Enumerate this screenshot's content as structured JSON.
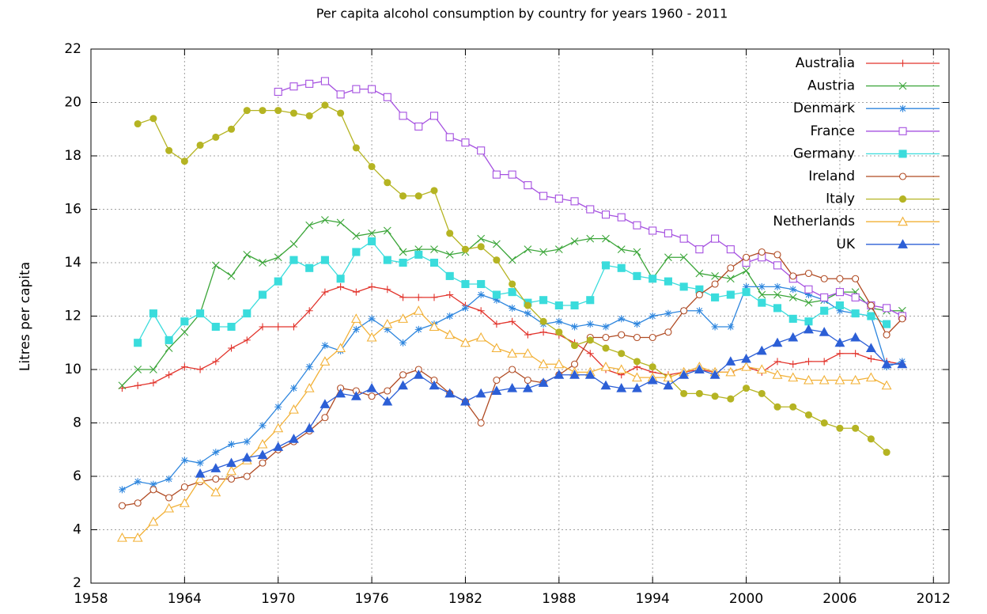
{
  "chart_data": {
    "type": "line",
    "title": "Per capita alcohol consumption by country for years 1960 - 2011",
    "y_label": "Litres per capita",
    "xlim": [
      1958,
      2013
    ],
    "xticks": [
      1958,
      1964,
      1970,
      1976,
      1982,
      1988,
      1994,
      2000,
      2006,
      2012
    ],
    "ylim": [
      2,
      22
    ],
    "yticks": [
      2,
      4,
      6,
      8,
      10,
      12,
      14,
      16,
      18,
      20,
      22
    ],
    "grid": true,
    "legend": "top-right",
    "x": [
      1960,
      1961,
      1962,
      1963,
      1964,
      1965,
      1966,
      1967,
      1968,
      1969,
      1970,
      1971,
      1972,
      1973,
      1974,
      1975,
      1976,
      1977,
      1978,
      1979,
      1980,
      1981,
      1982,
      1983,
      1984,
      1985,
      1986,
      1987,
      1988,
      1989,
      1990,
      1991,
      1992,
      1993,
      1994,
      1995,
      1996,
      1997,
      1998,
      1999,
      2000,
      2001,
      2002,
      2003,
      2004,
      2005,
      2006,
      2007,
      2008,
      2009,
      2010
    ],
    "series": [
      {
        "name": "Australia",
        "color": "#e2332b",
        "marker": "plus",
        "values": [
          9.3,
          9.4,
          9.5,
          9.8,
          10.1,
          10.0,
          10.3,
          10.8,
          11.1,
          11.6,
          11.6,
          11.6,
          12.2,
          12.9,
          13.1,
          12.9,
          13.1,
          13.0,
          12.7,
          12.7,
          12.7,
          12.8,
          12.4,
          12.2,
          11.7,
          11.8,
          11.3,
          11.4,
          11.3,
          11.0,
          10.6,
          10.0,
          9.8,
          10.1,
          9.9,
          9.8,
          9.9,
          10.0,
          9.9,
          9.9,
          10.1,
          9.9,
          10.3,
          10.2,
          10.3,
          10.3,
          10.6,
          10.6,
          10.4,
          10.3,
          10.2
        ]
      },
      {
        "name": "Austria",
        "color": "#3aa538",
        "marker": "cross",
        "values": [
          9.4,
          10.0,
          10.0,
          10.8,
          11.4,
          12.1,
          13.9,
          13.5,
          14.3,
          14.0,
          14.2,
          14.7,
          15.4,
          15.6,
          15.5,
          15.0,
          15.1,
          15.2,
          14.4,
          14.5,
          14.5,
          14.3,
          14.4,
          14.9,
          14.7,
          14.1,
          14.5,
          14.4,
          14.5,
          14.8,
          14.9,
          14.9,
          14.5,
          14.4,
          13.4,
          14.2,
          14.2,
          13.6,
          13.5,
          13.4,
          13.7,
          12.8,
          12.8,
          12.7,
          12.5,
          12.6,
          12.9,
          12.9,
          12.3,
          12.2,
          12.2
        ]
      },
      {
        "name": "Denmark",
        "color": "#2e86de",
        "marker": "star",
        "values": [
          5.5,
          5.8,
          5.7,
          5.9,
          6.6,
          6.5,
          6.9,
          7.2,
          7.3,
          7.9,
          8.6,
          9.3,
          10.1,
          10.9,
          10.7,
          11.5,
          11.9,
          11.5,
          11.0,
          11.5,
          11.7,
          12.0,
          12.3,
          12.8,
          12.6,
          12.3,
          12.1,
          11.7,
          11.8,
          11.6,
          11.7,
          11.6,
          11.9,
          11.7,
          12.0,
          12.1,
          12.2,
          12.2,
          11.6,
          11.6,
          13.1,
          13.1,
          13.1,
          13.0,
          12.8,
          12.6,
          12.2,
          12.1,
          12.0,
          10.1,
          10.3
        ]
      },
      {
        "name": "France",
        "color": "#a550e0",
        "marker": "open-square",
        "values": [
          null,
          null,
          null,
          null,
          null,
          null,
          null,
          null,
          null,
          null,
          20.4,
          20.6,
          20.7,
          20.8,
          20.3,
          20.5,
          20.5,
          20.2,
          19.5,
          19.1,
          19.5,
          18.7,
          18.5,
          18.2,
          17.3,
          17.3,
          16.9,
          16.5,
          16.4,
          16.3,
          16.0,
          15.8,
          15.7,
          15.4,
          15.2,
          15.1,
          14.9,
          14.5,
          14.9,
          14.5,
          14.0,
          14.2,
          13.9,
          13.4,
          13.0,
          12.7,
          12.9,
          12.7,
          12.4,
          12.3,
          12.0
        ]
      },
      {
        "name": "Germany",
        "color": "#3adcdc",
        "marker": "square",
        "values": [
          null,
          11.0,
          12.1,
          11.1,
          11.8,
          12.1,
          11.6,
          11.6,
          12.1,
          12.8,
          13.3,
          14.1,
          13.8,
          14.1,
          13.4,
          14.4,
          14.8,
          14.1,
          14.0,
          14.3,
          14.0,
          13.5,
          13.2,
          13.2,
          12.8,
          12.9,
          12.5,
          12.6,
          12.4,
          12.4,
          12.6,
          13.9,
          13.8,
          13.5,
          13.4,
          13.3,
          13.1,
          13.0,
          12.7,
          12.8,
          12.9,
          12.5,
          12.3,
          11.9,
          11.8,
          12.2,
          12.4,
          12.1,
          12.0,
          11.7,
          null
        ]
      },
      {
        "name": "Ireland",
        "color": "#b04a22",
        "marker": "open-circle",
        "values": [
          4.9,
          5.0,
          5.5,
          5.2,
          5.6,
          5.8,
          5.9,
          5.9,
          6.0,
          6.5,
          7.0,
          7.3,
          7.7,
          8.2,
          9.3,
          9.2,
          9.0,
          9.2,
          9.8,
          10.0,
          9.6,
          9.1,
          8.8,
          8.0,
          9.6,
          10.0,
          9.6,
          9.5,
          9.8,
          10.2,
          11.2,
          11.2,
          11.3,
          11.2,
          11.2,
          11.4,
          12.2,
          12.8,
          13.2,
          13.8,
          14.2,
          14.4,
          14.3,
          13.5,
          13.6,
          13.4,
          13.4,
          13.4,
          12.4,
          11.3,
          11.9
        ]
      },
      {
        "name": "Italy",
        "color": "#b5b423",
        "marker": "circle",
        "values": [
          null,
          19.2,
          19.4,
          18.2,
          17.8,
          18.4,
          18.7,
          19.0,
          19.7,
          19.7,
          19.7,
          19.6,
          19.5,
          19.9,
          19.6,
          18.3,
          17.6,
          17.0,
          16.5,
          16.5,
          16.7,
          15.1,
          14.5,
          14.6,
          14.1,
          13.2,
          12.4,
          11.8,
          11.4,
          10.9,
          11.1,
          10.8,
          10.6,
          10.3,
          10.1,
          9.7,
          9.1,
          9.1,
          9.0,
          8.9,
          9.3,
          9.1,
          8.6,
          8.6,
          8.3,
          8.0,
          7.8,
          7.8,
          7.4,
          6.9,
          null
        ]
      },
      {
        "name": "Netherlands",
        "color": "#f2b035",
        "marker": "open-triangle",
        "values": [
          3.7,
          3.7,
          4.3,
          4.8,
          5.0,
          5.9,
          5.4,
          6.2,
          6.6,
          7.2,
          7.8,
          8.5,
          9.3,
          10.3,
          10.8,
          11.9,
          11.2,
          11.7,
          11.9,
          12.2,
          11.6,
          11.3,
          11.0,
          11.2,
          10.8,
          10.6,
          10.6,
          10.2,
          10.2,
          9.9,
          9.9,
          10.1,
          10.0,
          9.7,
          9.7,
          9.7,
          9.9,
          10.1,
          9.9,
          9.9,
          10.1,
          10.0,
          9.8,
          9.7,
          9.6,
          9.6,
          9.6,
          9.6,
          9.7,
          9.4,
          null
        ]
      },
      {
        "name": "UK",
        "color": "#2c5fd6",
        "marker": "triangle",
        "values": [
          null,
          null,
          null,
          null,
          null,
          6.1,
          6.3,
          6.5,
          6.7,
          6.8,
          7.1,
          7.4,
          7.8,
          8.7,
          9.1,
          9.0,
          9.3,
          8.8,
          9.4,
          9.8,
          9.4,
          9.1,
          8.8,
          9.1,
          9.2,
          9.3,
          9.3,
          9.5,
          9.8,
          9.8,
          9.8,
          9.4,
          9.3,
          9.3,
          9.6,
          9.4,
          9.8,
          10.0,
          9.8,
          10.3,
          10.4,
          10.7,
          11.0,
          11.2,
          11.5,
          11.4,
          11.0,
          11.2,
          10.8,
          10.2,
          10.2
        ]
      }
    ]
  }
}
